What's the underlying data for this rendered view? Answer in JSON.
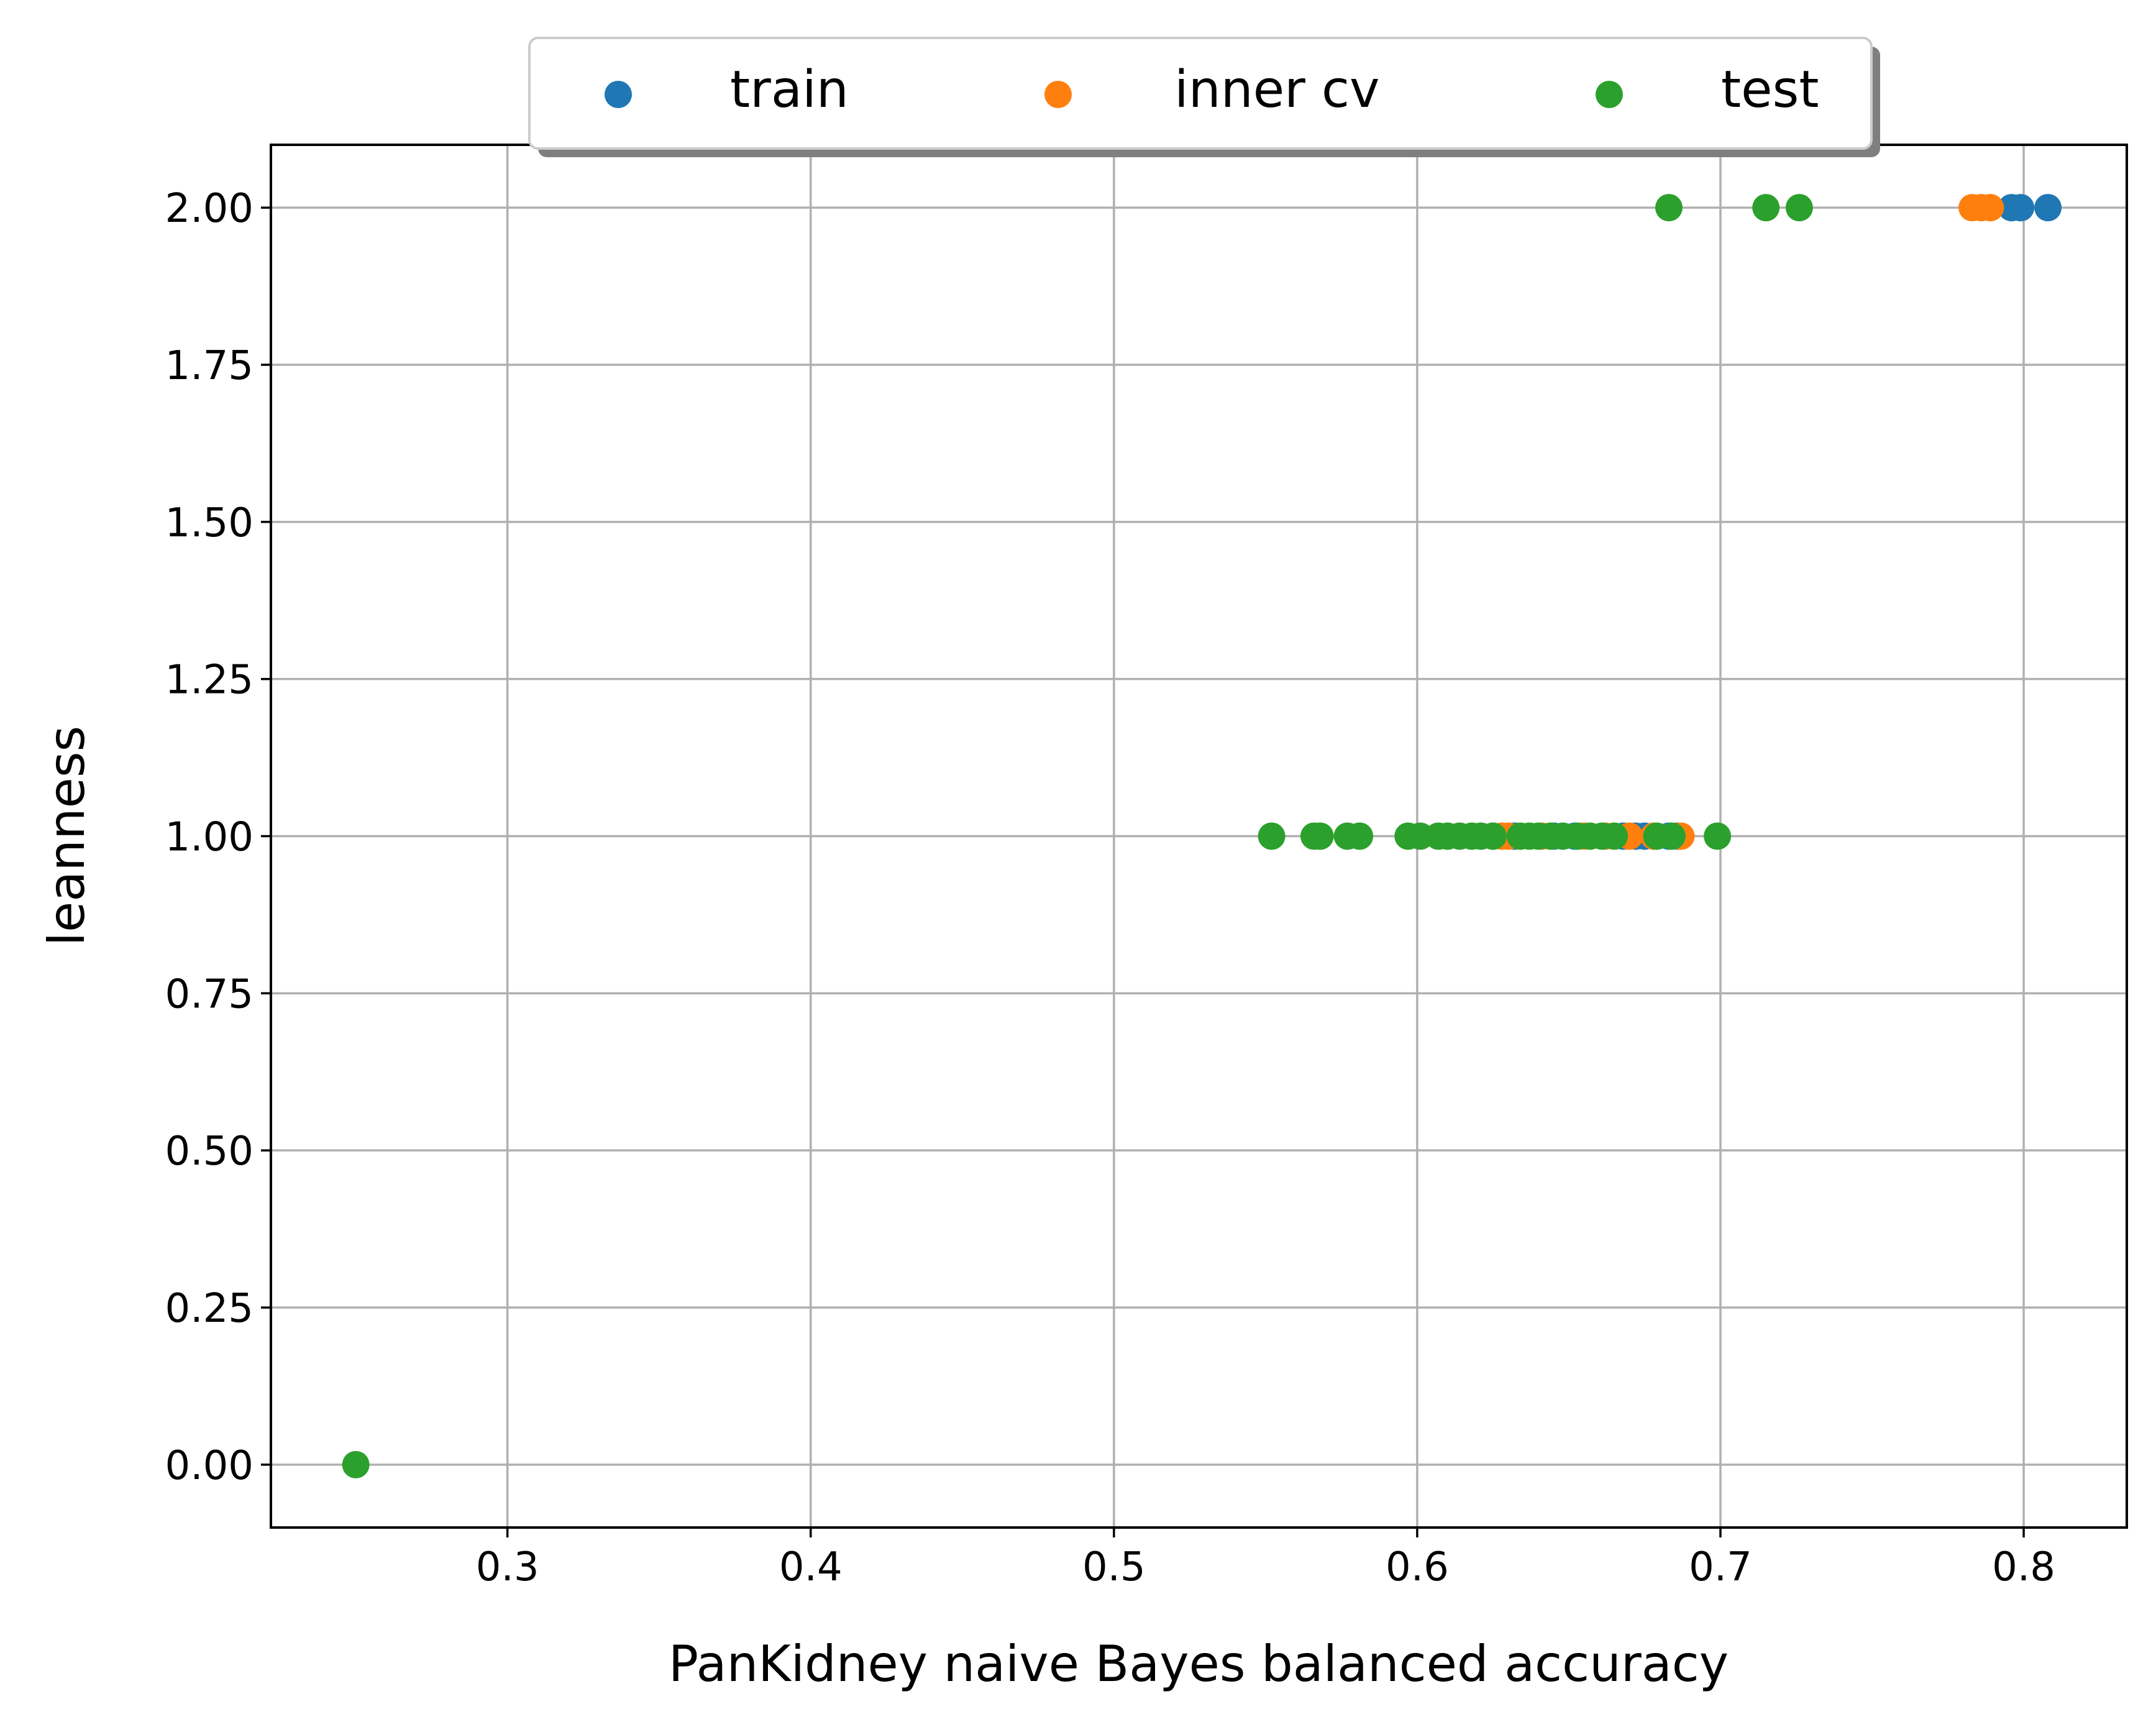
{
  "chart_data": {
    "type": "scatter",
    "xlabel": "PanKidney naive Bayes balanced accuracy",
    "ylabel": "leanness",
    "xlim": [
      0.222,
      0.834
    ],
    "ylim": [
      -0.1,
      2.1
    ],
    "xticks": [
      "0.3",
      "0.4",
      "0.5",
      "0.6",
      "0.7",
      "0.8"
    ],
    "yticks": [
      "0.00",
      "0.25",
      "0.50",
      "0.75",
      "1.00",
      "1.25",
      "1.50",
      "1.75",
      "2.00"
    ],
    "grid": true,
    "legend_position": "top-center, above plot",
    "series": [
      {
        "name": "train",
        "color": "#1f77b4",
        "points": [
          [
            0.625,
            1
          ],
          [
            0.632,
            1
          ],
          [
            0.645,
            1
          ],
          [
            0.652,
            1
          ],
          [
            0.668,
            1
          ],
          [
            0.672,
            1
          ],
          [
            0.675,
            1
          ],
          [
            0.683,
            1
          ],
          [
            0.686,
            1
          ],
          [
            0.796,
            2
          ],
          [
            0.799,
            2
          ],
          [
            0.808,
            2
          ]
        ]
      },
      {
        "name": "inner cv",
        "color": "#ff7f0e",
        "points": [
          [
            0.628,
            1
          ],
          [
            0.63,
            1
          ],
          [
            0.641,
            1
          ],
          [
            0.655,
            1
          ],
          [
            0.662,
            1
          ],
          [
            0.67,
            1
          ],
          [
            0.678,
            1
          ],
          [
            0.687,
            1
          ],
          [
            0.783,
            2
          ],
          [
            0.786,
            2
          ],
          [
            0.789,
            2
          ]
        ]
      },
      {
        "name": "test",
        "color": "#2ca02c",
        "points": [
          [
            0.25,
            0
          ],
          [
            0.552,
            1
          ],
          [
            0.566,
            1
          ],
          [
            0.568,
            1
          ],
          [
            0.577,
            1
          ],
          [
            0.581,
            1
          ],
          [
            0.597,
            1
          ],
          [
            0.601,
            1
          ],
          [
            0.607,
            1
          ],
          [
            0.61,
            1
          ],
          [
            0.614,
            1
          ],
          [
            0.618,
            1
          ],
          [
            0.621,
            1
          ],
          [
            0.625,
            1
          ],
          [
            0.634,
            1
          ],
          [
            0.637,
            1
          ],
          [
            0.64,
            1
          ],
          [
            0.644,
            1
          ],
          [
            0.648,
            1
          ],
          [
            0.653,
            1
          ],
          [
            0.657,
            1
          ],
          [
            0.661,
            1
          ],
          [
            0.665,
            1
          ],
          [
            0.679,
            1
          ],
          [
            0.684,
            1
          ],
          [
            0.699,
            1
          ],
          [
            0.683,
            2
          ],
          [
            0.715,
            2
          ],
          [
            0.726,
            2
          ]
        ]
      }
    ]
  }
}
